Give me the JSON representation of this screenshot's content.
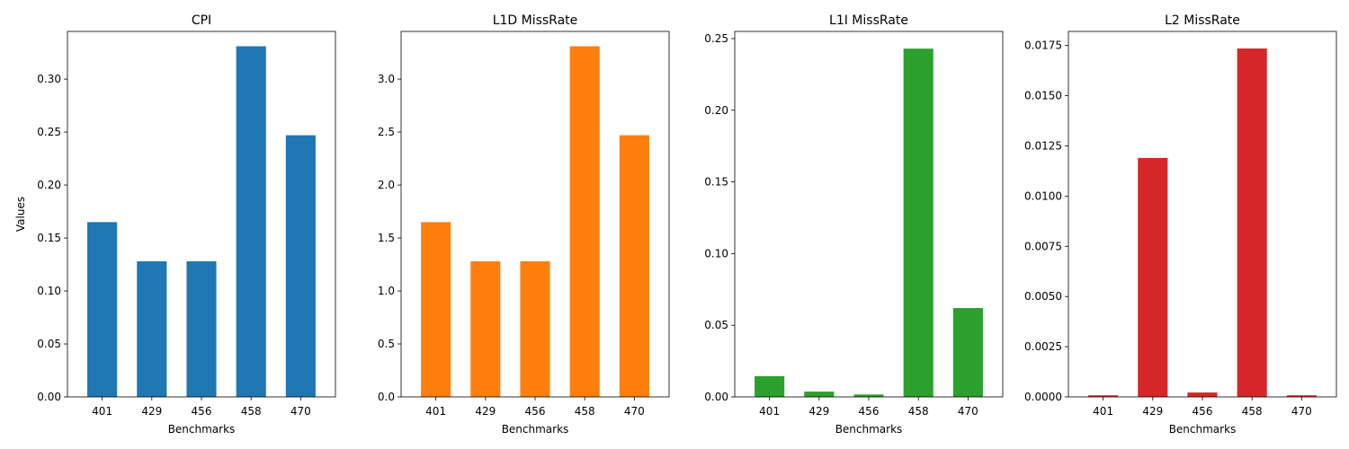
{
  "chart_data": [
    {
      "type": "bar",
      "title": "CPI",
      "xlabel": "Benchmarks",
      "ylabel": "Values",
      "categories": [
        "401",
        "429",
        "456",
        "458",
        "470"
      ],
      "values": [
        0.165,
        0.128,
        0.128,
        0.331,
        0.247
      ],
      "ylim": [
        0,
        0.345
      ],
      "yticks": [
        "0.00",
        "0.05",
        "0.10",
        "0.15",
        "0.20",
        "0.25",
        "0.30"
      ],
      "color": "#1f77b4",
      "grid": false
    },
    {
      "type": "bar",
      "title": "L1D MissRate",
      "xlabel": "Benchmarks",
      "ylabel": "",
      "categories": [
        "401",
        "429",
        "456",
        "458",
        "470"
      ],
      "values": [
        1.65,
        1.28,
        1.28,
        3.31,
        2.47
      ],
      "ylim": [
        0,
        3.45
      ],
      "yticks": [
        "0.0",
        "0.5",
        "1.0",
        "1.5",
        "2.0",
        "2.5",
        "3.0"
      ],
      "color": "#ff7f0e",
      "grid": false
    },
    {
      "type": "bar",
      "title": "L1I MissRate",
      "xlabel": "Benchmarks",
      "ylabel": "",
      "categories": [
        "401",
        "429",
        "456",
        "458",
        "470"
      ],
      "values": [
        0.0145,
        0.0037,
        0.0017,
        0.243,
        0.062
      ],
      "ylim": [
        0,
        0.255
      ],
      "yticks": [
        "0.00",
        "0.05",
        "0.10",
        "0.15",
        "0.20",
        "0.25"
      ],
      "color": "#2ca02c",
      "grid": false
    },
    {
      "type": "bar",
      "title": "L2 MissRate",
      "xlabel": "Benchmarks",
      "ylabel": "",
      "categories": [
        "401",
        "429",
        "456",
        "458",
        "470"
      ],
      "values": [
        8e-05,
        0.0119,
        0.00022,
        0.01735,
        8e-05
      ],
      "ylim": [
        0,
        0.0182
      ],
      "yticks": [
        "0.0000",
        "0.0025",
        "0.0050",
        "0.0075",
        "0.0100",
        "0.0125",
        "0.0150",
        "0.0175"
      ],
      "color": "#d62728",
      "grid": false
    }
  ]
}
